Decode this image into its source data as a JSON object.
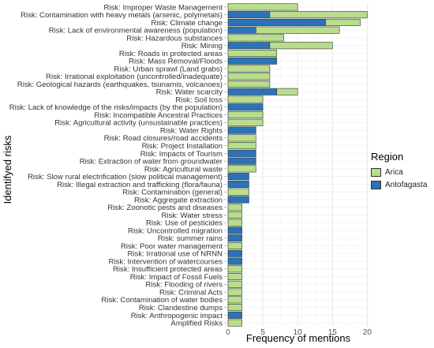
{
  "chart_data": {
    "type": "bar",
    "orientation": "horizontal",
    "stacked": true,
    "xlabel": "Frequency of mentions",
    "ylabel": "Identifyed risks",
    "xlim": [
      0,
      21
    ],
    "xticks": [
      0,
      5,
      10,
      15,
      20
    ],
    "grid": true,
    "legend_title": "Region",
    "legend_position": "right",
    "categories": [
      "Risk: Improper Waste Management",
      "Risk: Contamination with heavy metals (arsenic, polymetals)",
      "Risk: Climate change",
      "Risk: Lack of environmental awareness (population)",
      "Risk: Hazardous substances",
      "Risk: Mining",
      "Risk: Roads in protected areas",
      "Risk: Mass Removal/Floods",
      "Risk: Urban sprawl (Land grabs)",
      "Risk: Irrational exploitation (uncontrolled/inadequate)",
      "Risk: Geological hazards (earthquakes, tsunamis, volcanoes)",
      "Risk: Water scarcity",
      "Risk: Soil loss",
      "Risk: Lack of knowledge of the risks/impacts (by the population)",
      "Risk: Incompatible Ancestral Practices",
      "Risk: Agricultural activity (unsustainable practices)",
      "Risk: Water Rights",
      "Risk: Road closures/road accidents",
      "Risk: Project Installation",
      "Risk: Impacts of Tourism",
      "Risk: Extraction of water from groundwater",
      "Risk: Agricultural waste",
      "Risk: Slow rural electrification (slow political management)",
      "Risk: Illegal extraction and trafficking (flora/fauna)",
      "Risk: Contamination (general)",
      "Risk: Aggregate extraction",
      "Risk: Zoonotic pests and diseases",
      "Risk: Water stress",
      "Risk: Use of pesticides",
      "Risk: Uncontrolled migration",
      "Risk: summer rains",
      "Risk: Poor water management",
      "Risk: Irrational use of NRNN",
      "Risk: Intervention of watercourses",
      "Risk: Insufficient protected areas",
      "Risk: Impact of Fossil Fuels",
      "Risk: Flooding of rivers",
      "Risk: Criminal Acts",
      "Risk: Contamination of water bodies",
      "Risk: Clandestine dumps",
      "Risk: Anthropogenic impact",
      "Amplified Risks"
    ],
    "series": [
      {
        "name": "Arica",
        "color": "#b8dd8c",
        "values": [
          10,
          14,
          5,
          12,
          8,
          9,
          7,
          0,
          6,
          6,
          6,
          3,
          5,
          0,
          5,
          5,
          0,
          4,
          4,
          0,
          0,
          4,
          0,
          0,
          3,
          0,
          2,
          2,
          2,
          0,
          0,
          2,
          0,
          0,
          2,
          2,
          2,
          2,
          2,
          2,
          0,
          2
        ]
      },
      {
        "name": "Antofagasta",
        "color": "#2a73b6",
        "values": [
          0,
          6,
          14,
          4,
          0,
          6,
          0,
          7,
          0,
          0,
          0,
          7,
          0,
          5,
          0,
          0,
          4,
          0,
          0,
          4,
          4,
          0,
          3,
          3,
          0,
          3,
          0,
          0,
          0,
          2,
          2,
          0,
          2,
          2,
          0,
          0,
          0,
          0,
          0,
          0,
          2,
          0
        ]
      }
    ]
  }
}
